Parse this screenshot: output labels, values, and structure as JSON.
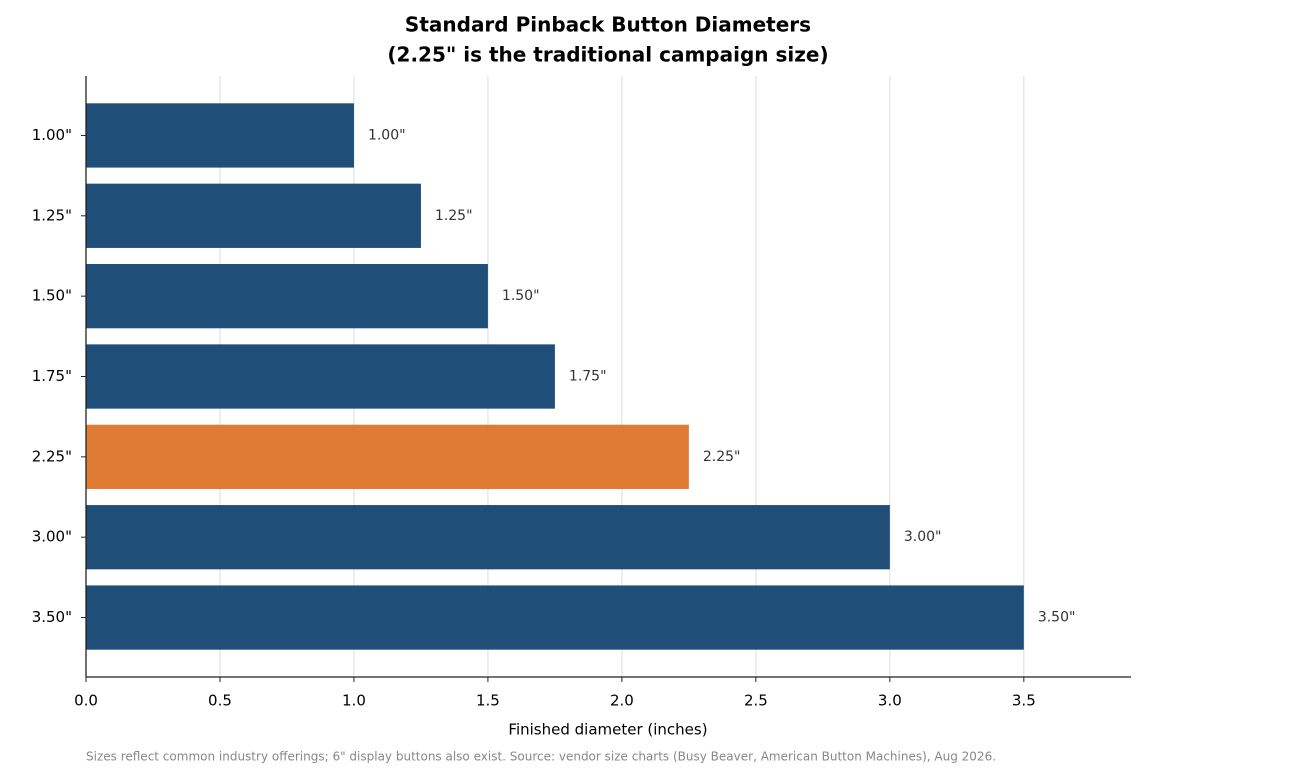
{
  "chart_data": {
    "type": "barh",
    "title": [
      "Standard Pinback Button Diameters",
      "(2.25\" is the traditional campaign size)"
    ],
    "categories": [
      "1.00\"",
      "1.25\"",
      "1.50\"",
      "1.75\"",
      "2.25\"",
      "3.00\"",
      "3.50\""
    ],
    "values": [
      1.0,
      1.25,
      1.5,
      1.75,
      2.25,
      3.0,
      3.5
    ],
    "value_labels": [
      "1.00\"",
      "1.25\"",
      "1.50\"",
      "1.75\"",
      "2.25\"",
      "3.00\"",
      "3.50\""
    ],
    "colors": [
      "#1f4e79",
      "#1f4e79",
      "#1f4e79",
      "#1f4e79",
      "#e07b33",
      "#1f4e79",
      "#1f4e79"
    ],
    "xlim": [
      0,
      3.9
    ],
    "xticks": [
      {
        "value": 0,
        "label": "0.0"
      },
      0.5,
      {
        "value": 1,
        "label": "1.0"
      },
      1.5,
      {
        "value": 2,
        "label": "2.0"
      },
      2.5,
      {
        "value": 3,
        "label": "3.0"
      },
      3.5
    ],
    "xlabel": "Finished diameter (inches)",
    "note": "Sizes reflect common industry offerings; 6\" display buttons also exist. Source: vendor size charts (Busy Beaver, American Button Machines), Aug 2026.",
    "grid": true
  }
}
